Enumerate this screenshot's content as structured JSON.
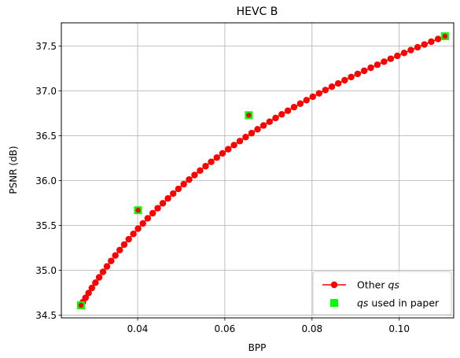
{
  "chart_data": {
    "type": "line",
    "title": "HEVC B",
    "xlabel": "BPP",
    "ylabel": "PSNR (dB)",
    "xlim": [
      0.0225,
      0.1125
    ],
    "ylim": [
      34.47,
      37.76
    ],
    "x_ticks": [
      0.04,
      0.06,
      0.08,
      0.1
    ],
    "x_tick_labels": [
      "0.04",
      "0.06",
      "0.08",
      "0.10"
    ],
    "y_ticks": [
      34.5,
      35.0,
      35.5,
      36.0,
      36.5,
      37.0,
      37.5
    ],
    "y_tick_labels": [
      "34.5",
      "35.0",
      "35.5",
      "36.0",
      "36.5",
      "37.0",
      "37.5"
    ],
    "grid": true,
    "legend_position": "lower-right",
    "series": [
      {
        "name": "Other qs",
        "legend_plain": "Other ",
        "legend_italic": "qs",
        "kind": "line-with-markers",
        "color": "#ff0000",
        "x_range": [
          0.027,
          0.1105
        ],
        "n_points": 67,
        "curve": {
          "a": 30.2,
          "b": 0.00135,
          "c": 0.0005,
          "k": 1.18
        }
      },
      {
        "name": "qs used in paper",
        "legend_italic": "qs",
        "legend_plain": " used in paper",
        "kind": "scatter-square",
        "color": "#00ff00",
        "x": [
          0.027,
          0.0401,
          0.0655,
          0.1105
        ],
        "y": [
          34.61,
          35.67,
          36.73,
          37.61
        ]
      }
    ]
  }
}
